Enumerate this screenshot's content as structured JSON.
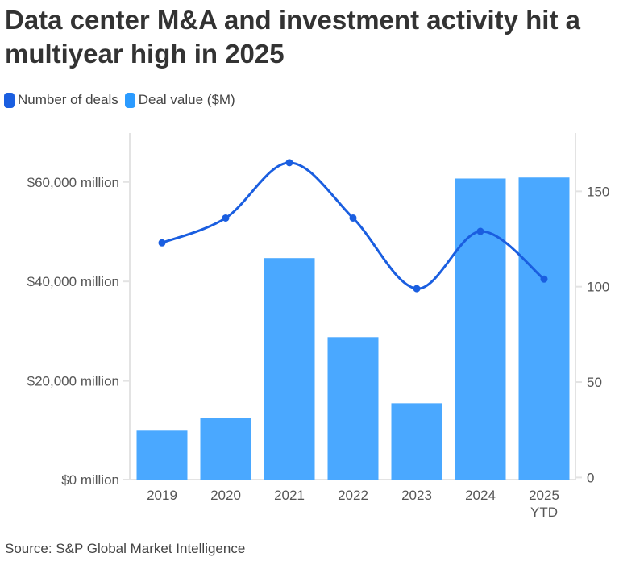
{
  "title": "Data center M&A and investment activity hit a multiyear high in 2025",
  "source": "Source: S&P Global Market Intelligence",
  "chart_data": {
    "type": "bar+line",
    "title": "Data center M&A and investment activity hit a multiyear high in 2025",
    "categories": [
      "2019",
      "2020",
      "2021",
      "2022",
      "2023",
      "2024",
      "2025 YTD"
    ],
    "series": [
      {
        "name": "Number of deals",
        "type": "line",
        "axis": "right",
        "color": "#1a5ee0",
        "values": [
          123,
          136,
          165,
          136,
          99,
          129,
          104
        ]
      },
      {
        "name": "Deal value ($M)",
        "type": "bar",
        "axis": "left",
        "color": "#4aa8ff",
        "values": [
          10000,
          12500,
          44700,
          28800,
          15500,
          60700,
          60900
        ]
      }
    ],
    "left_axis": {
      "ticks": [
        0,
        20000,
        40000,
        60000
      ],
      "tick_labels": [
        "$0 million",
        "$20,000 million",
        "$40,000 million",
        "$60,000 million"
      ],
      "range": [
        0,
        70000
      ]
    },
    "right_axis": {
      "ticks": [
        0,
        50,
        100,
        150
      ],
      "tick_labels": [
        "0",
        "50",
        "100",
        "150"
      ],
      "range": [
        0,
        175
      ]
    },
    "legend": [
      "Number of deals",
      "Deal value ($M)"
    ],
    "legend_position": "top-left",
    "grid": false
  }
}
